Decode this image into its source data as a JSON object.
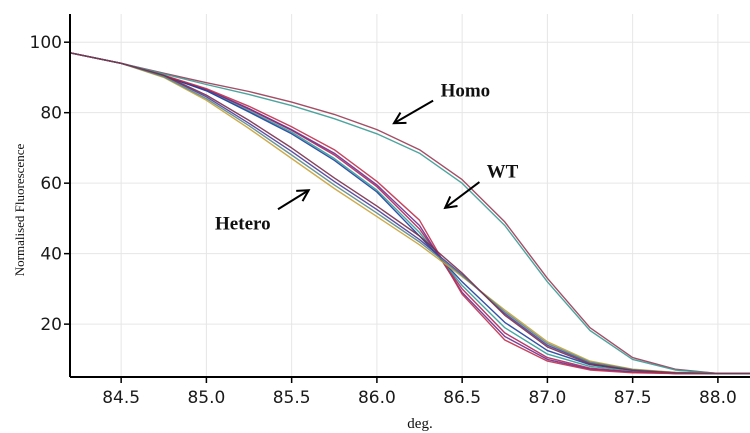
{
  "chart_data": {
    "type": "line",
    "title": "",
    "xlabel": "deg.",
    "ylabel": "Normalised Fluorescence",
    "xlim": [
      84.2,
      88.2
    ],
    "ylim": [
      5,
      108
    ],
    "x_ticks": [
      "84.5",
      "85.0",
      "85.5",
      "86.0",
      "86.5",
      "87.0",
      "87.5",
      "88.0"
    ],
    "y_ticks": [
      "20",
      "40",
      "60",
      "80",
      "100"
    ],
    "grid": true,
    "x": [
      84.2,
      84.5,
      84.75,
      85.0,
      85.25,
      85.5,
      85.75,
      86.0,
      86.25,
      86.5,
      86.75,
      87.0,
      87.25,
      87.5,
      87.75,
      88.0,
      88.2
    ],
    "series": [
      {
        "group": "WT",
        "color": "#b0245a",
        "values": [
          97,
          94,
          90.5,
          86.5,
          81,
          75,
          68,
          59,
          47,
          30,
          17.5,
          10.5,
          7.5,
          6.5,
          6,
          6,
          6
        ]
      },
      {
        "group": "WT",
        "color": "#2e9e98",
        "values": [
          97,
          94,
          90.5,
          86.3,
          80.5,
          74.5,
          67,
          58,
          46,
          31,
          19,
          11.5,
          8,
          6.8,
          6.2,
          6,
          6
        ]
      },
      {
        "group": "WT",
        "color": "#6a2c8c",
        "values": [
          97,
          94,
          90.5,
          86.6,
          81.2,
          75.2,
          68.5,
          59.5,
          48,
          29,
          16.5,
          10,
          7.2,
          6.4,
          6,
          6,
          6
        ]
      },
      {
        "group": "WT",
        "color": "#1f3c9c",
        "values": [
          97,
          94,
          90.5,
          86.2,
          80.2,
          74,
          66.5,
          57.5,
          45,
          32,
          20.5,
          12.5,
          8.5,
          7,
          6.3,
          6,
          6
        ]
      },
      {
        "group": "WT",
        "color": "#c0304a",
        "values": [
          97,
          94,
          90.6,
          86.8,
          81.8,
          76,
          69.5,
          60.5,
          49.5,
          28.5,
          15.5,
          9.5,
          7,
          6.2,
          6,
          6,
          6
        ]
      },
      {
        "group": "Homo",
        "color": "#9a3b55",
        "values": [
          97,
          94,
          91.2,
          88.5,
          86,
          83,
          79.5,
          75.2,
          69.5,
          61,
          49,
          33,
          19,
          10.5,
          7.2,
          6,
          6
        ]
      },
      {
        "group": "Homo",
        "color": "#3a9a94",
        "values": [
          97,
          94,
          91,
          88,
          85.2,
          82,
          78.3,
          74,
          68.5,
          60,
          48,
          32,
          18.2,
          10,
          7,
          6,
          6
        ]
      },
      {
        "group": "Hetero",
        "color": "#c8a23a",
        "values": [
          97,
          94,
          90,
          83.5,
          75.5,
          67,
          58.5,
          50.5,
          42.5,
          33.5,
          24,
          15,
          9.5,
          7.2,
          6.3,
          6,
          6
        ]
      },
      {
        "group": "Hetero",
        "color": "#4a3c9a",
        "values": [
          97,
          94,
          90.5,
          84.5,
          77,
          69,
          60.5,
          52.5,
          44,
          34,
          23,
          14,
          9,
          7,
          6.2,
          6,
          6
        ]
      },
      {
        "group": "Hetero",
        "color": "#5a8a8a",
        "values": [
          97,
          94,
          90.2,
          84,
          76.3,
          68,
          59.5,
          51.5,
          43.3,
          33.8,
          23.5,
          14.5,
          9.2,
          7.1,
          6.2,
          6,
          6
        ]
      },
      {
        "group": "Hetero",
        "color": "#7a2e4a",
        "values": [
          97,
          94,
          90.6,
          85,
          77.8,
          70,
          61.5,
          53.5,
          45,
          34.5,
          22.5,
          13.5,
          8.7,
          6.9,
          6.2,
          6,
          6
        ]
      }
    ],
    "annotations": [
      {
        "text": "Homo",
        "x": 86.1,
        "y": 77,
        "tx": 86.35,
        "ty": 84
      },
      {
        "text": "WT",
        "x": 86.4,
        "y": 53,
        "tx": 86.62,
        "ty": 61
      },
      {
        "text": "Hetero",
        "x": 85.6,
        "y": 58,
        "tx": 85.4,
        "ty": 52
      }
    ]
  }
}
